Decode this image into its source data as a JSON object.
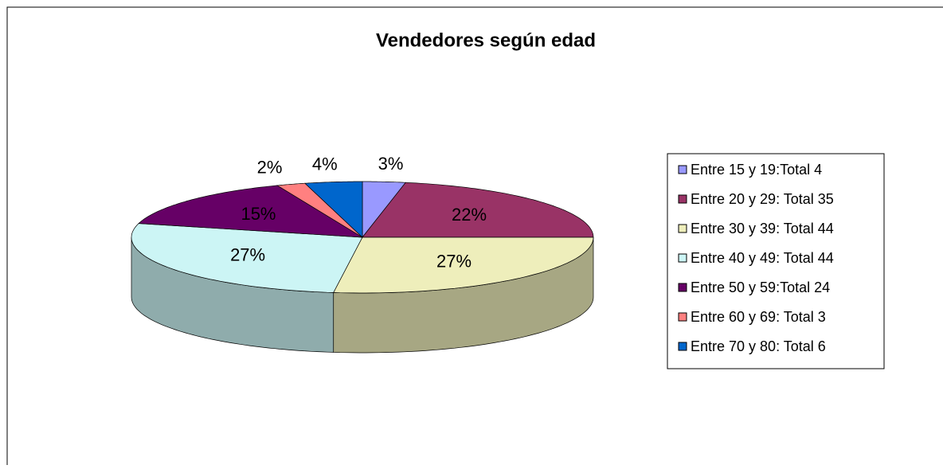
{
  "chart_data": {
    "type": "pie",
    "title": "Vendedores según edad",
    "categories": [
      "Entre 15 y 19:Total 4",
      "Entre 20 y 29: Total 35",
      "Entre 30 y 39: Total 44",
      "Entre 40 y 49: Total 44",
      "Entre 50 y 59:Total 24",
      "Entre 60 y 69: Total 3",
      "Entre 70 y 80: Total 6"
    ],
    "values": [
      3,
      22,
      27,
      27,
      15,
      2,
      4
    ],
    "value_labels": [
      "3%",
      "22%",
      "27%",
      "27%",
      "15%",
      "2%",
      "4%"
    ],
    "colors": [
      "#9999ff",
      "#993366",
      "#eeeebb",
      "#ccf5f5",
      "#660066",
      "#ff8080",
      "#0066cc"
    ],
    "legend": "right"
  }
}
